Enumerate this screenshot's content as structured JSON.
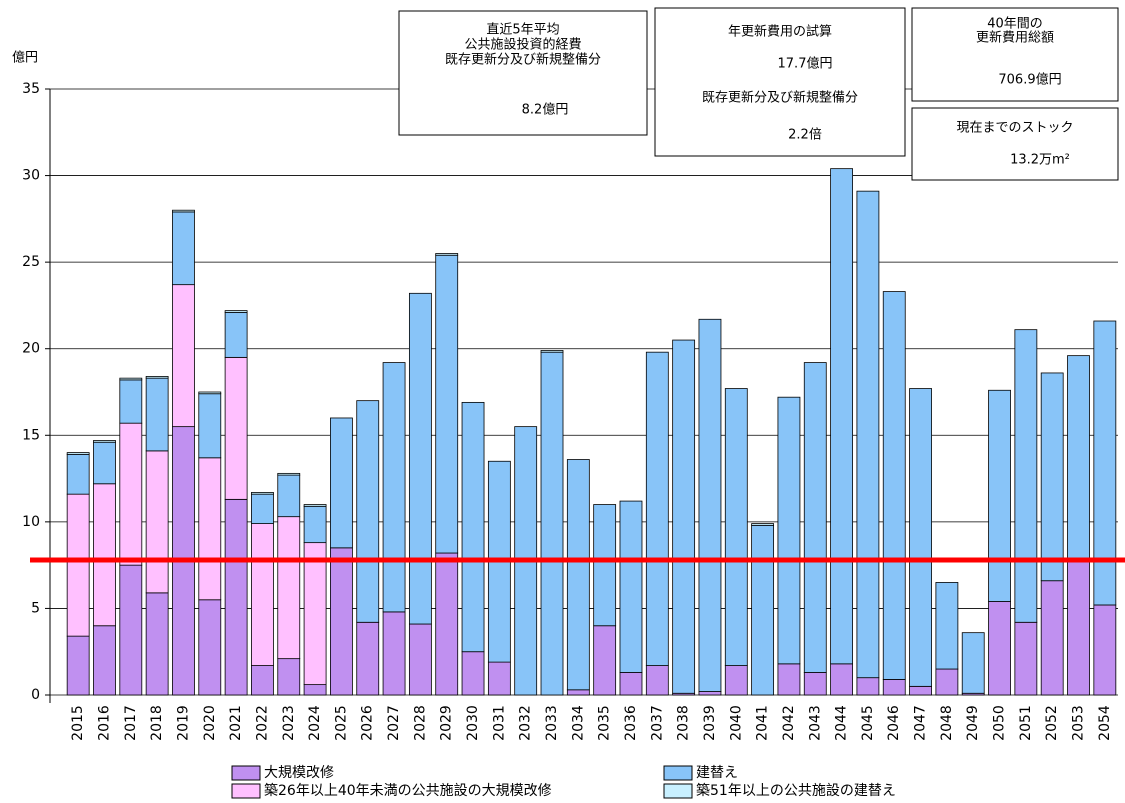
{
  "chart_data": {
    "type": "stacked_bar",
    "ylabel": "億円",
    "categories": [
      "2015",
      "2016",
      "2017",
      "2018",
      "2019",
      "2020",
      "2021",
      "2022",
      "2023",
      "2024",
      "2025",
      "2026",
      "2027",
      "2028",
      "2029",
      "2030",
      "2031",
      "2032",
      "2033",
      "2034",
      "2035",
      "2036",
      "2037",
      "2038",
      "2039",
      "2040",
      "2041",
      "2042",
      "2043",
      "2044",
      "2045",
      "2046",
      "2047",
      "2048",
      "2049",
      "2050",
      "2051",
      "2052",
      "2053",
      "2054"
    ],
    "series": [
      {
        "name": "大規模改修",
        "color": "#c090f0",
        "values": [
          3.4,
          4.0,
          7.5,
          5.9,
          15.5,
          5.5,
          11.3,
          1.7,
          2.1,
          0.6,
          8.5,
          4.2,
          4.8,
          4.1,
          8.2,
          2.5,
          1.9,
          0,
          0,
          0.3,
          4.0,
          1.3,
          1.7,
          0.1,
          0.2,
          1.7,
          0,
          1.8,
          1.3,
          1.8,
          1.0,
          0.9,
          0.5,
          1.5,
          0.1,
          5.4,
          4.2,
          6.6,
          7.8,
          5.2
        ]
      },
      {
        "name": "築26年以上40年未満の公共施設の大規模改修",
        "color": "#ffc0ff",
        "values": [
          8.2,
          8.2,
          8.2,
          8.2,
          8.2,
          8.2,
          8.2,
          8.2,
          8.2,
          8.2,
          0,
          0,
          0,
          0,
          0,
          0,
          0,
          0,
          0,
          0,
          0,
          0,
          0,
          0,
          0,
          0,
          0,
          0,
          0,
          0,
          0,
          0,
          0,
          0,
          0,
          0,
          0,
          0,
          0,
          0
        ]
      },
      {
        "name": "建替え",
        "color": "#88c4f8",
        "values": [
          2.3,
          2.4,
          2.5,
          4.2,
          4.2,
          3.7,
          2.6,
          1.7,
          2.4,
          2.1,
          7.5,
          12.8,
          14.4,
          19.1,
          17.2,
          14.4,
          11.6,
          15.5,
          19.8,
          13.3,
          7.0,
          9.9,
          18.1,
          20.4,
          21.5,
          16.0,
          9.8,
          15.4,
          17.9,
          28.6,
          28.1,
          22.4,
          17.2,
          5.0,
          3.5,
          12.2,
          16.9,
          12.0,
          11.8,
          16.4
        ]
      },
      {
        "name": "築51年以上の公共施設の建替え",
        "color": "#c8f0ff",
        "values": [
          0.1,
          0.1,
          0.1,
          0.1,
          0.1,
          0.1,
          0.1,
          0.1,
          0.1,
          0.1,
          0,
          0,
          0,
          0,
          0.1,
          0,
          0,
          0,
          0.1,
          0,
          0,
          0,
          0,
          0,
          0,
          0,
          0.1,
          0,
          0,
          0,
          0,
          0,
          0,
          0,
          0,
          0,
          0,
          0,
          0,
          0
        ]
      }
    ],
    "ylim": [
      0,
      35
    ],
    "yticks": [
      0,
      5,
      10,
      15,
      20,
      25,
      30,
      35
    ],
    "grid": true,
    "reference_line": {
      "value": 7.8,
      "color": "#ff0000"
    },
    "info_boxes": [
      {
        "lines": [
          "直近5年平均",
          "公共施設投資的経費",
          "既存更新分及び新規整備分",
          "8.2億円"
        ]
      },
      {
        "lines": [
          "年更新費用の試算",
          "17.7億円",
          "既存更新分及び新規整備分",
          "2.2倍"
        ]
      },
      {
        "lines": [
          "40年間の",
          "更新費用総額",
          "706.9億円"
        ]
      },
      {
        "lines": [
          "現在までのストック",
          "13.2万m²"
        ]
      }
    ]
  }
}
